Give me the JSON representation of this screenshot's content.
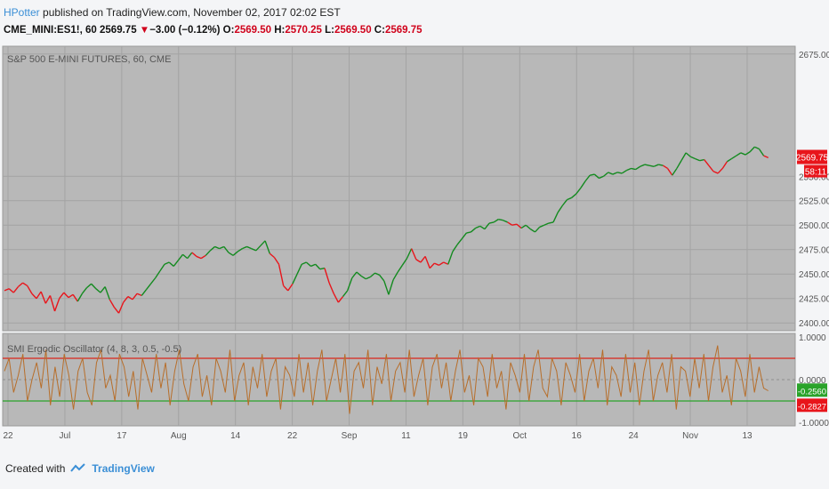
{
  "header": {
    "author": "HPotter",
    "published_text": " published on TradingView.com, November 02, 2017 02:02 EST"
  },
  "symbol_line": {
    "symbol": "CME_MINI:ES1!, 60",
    "last": "2569.75",
    "change_arrow": "▼",
    "change": "−3.00 (−0.12%)",
    "o_label": "O:",
    "o": "2569.50",
    "h_label": "H:",
    "h": "2570.25",
    "l_label": "L:",
    "l": "2569.50",
    "c_label": "C:",
    "c": "2569.75"
  },
  "footer": {
    "created_with": "Created with",
    "brand": "TradingView"
  },
  "colors": {
    "up": "#138a1f",
    "down": "#e8151b",
    "osc_line": "#b76e2a",
    "upper_level": "#d9261c",
    "lower_level": "#2aa32a",
    "pane_bg": "#b8b8b8"
  },
  "chart_data": [
    {
      "type": "line",
      "title": "S&P 500 E-MINI FUTURES, 60, CME",
      "ylim": [
        2392,
        2683
      ],
      "y_ticks": [
        "2675.00",
        "2550.00",
        "2525.00",
        "2500.00",
        "2475.00",
        "2450.00",
        "2425.00",
        "2400.00"
      ],
      "x_ticks": [
        "22",
        "Jul",
        "17",
        "Aug",
        "14",
        "22",
        "Sep",
        "11",
        "19",
        "Oct",
        "16",
        "24",
        "Nov",
        "13"
      ],
      "last_price_label": "2569.75",
      "countdown_label": "58:11",
      "series": [
        {
          "points": [
            [
              0,
              2433,
              "d"
            ],
            [
              2,
              2435,
              "d"
            ],
            [
              4,
              2431,
              "d"
            ],
            [
              6,
              2437,
              "d"
            ],
            [
              8,
              2441,
              "d"
            ],
            [
              10,
              2438,
              "d"
            ],
            [
              12,
              2430,
              "d"
            ],
            [
              14,
              2425,
              "d"
            ],
            [
              16,
              2432,
              "d"
            ],
            [
              18,
              2420,
              "d"
            ],
            [
              20,
              2428,
              "d"
            ],
            [
              22,
              2412,
              "d"
            ],
            [
              24,
              2425,
              "d"
            ],
            [
              26,
              2431,
              "d"
            ],
            [
              28,
              2426,
              "d"
            ],
            [
              30,
              2429,
              "d"
            ],
            [
              32,
              2422,
              "d"
            ],
            [
              34,
              2430,
              "u"
            ],
            [
              36,
              2436,
              "u"
            ],
            [
              38,
              2440,
              "u"
            ],
            [
              40,
              2435,
              "u"
            ],
            [
              42,
              2431,
              "u"
            ],
            [
              44,
              2437,
              "u"
            ],
            [
              46,
              2424,
              "u"
            ],
            [
              48,
              2416,
              "d"
            ],
            [
              50,
              2410,
              "d"
            ],
            [
              52,
              2421,
              "d"
            ],
            [
              54,
              2427,
              "d"
            ],
            [
              56,
              2424,
              "d"
            ],
            [
              58,
              2430,
              "d"
            ],
            [
              60,
              2428,
              "d"
            ],
            [
              62,
              2434,
              "u"
            ],
            [
              64,
              2440,
              "u"
            ],
            [
              66,
              2446,
              "u"
            ],
            [
              68,
              2453,
              "u"
            ],
            [
              70,
              2460,
              "u"
            ],
            [
              72,
              2462,
              "u"
            ],
            [
              74,
              2458,
              "u"
            ],
            [
              76,
              2464,
              "u"
            ],
            [
              78,
              2470,
              "u"
            ],
            [
              80,
              2466,
              "u"
            ],
            [
              82,
              2472,
              "u"
            ],
            [
              84,
              2468,
              "d"
            ],
            [
              86,
              2466,
              "d"
            ],
            [
              88,
              2469,
              "d"
            ],
            [
              90,
              2474,
              "u"
            ],
            [
              92,
              2478,
              "u"
            ],
            [
              94,
              2476,
              "u"
            ],
            [
              96,
              2478,
              "u"
            ],
            [
              98,
              2472,
              "u"
            ],
            [
              100,
              2469,
              "u"
            ],
            [
              102,
              2473,
              "u"
            ],
            [
              104,
              2476,
              "u"
            ],
            [
              106,
              2478,
              "u"
            ],
            [
              108,
              2476,
              "u"
            ],
            [
              110,
              2474,
              "u"
            ],
            [
              112,
              2479,
              "u"
            ],
            [
              114,
              2484,
              "u"
            ],
            [
              116,
              2471,
              "u"
            ],
            [
              118,
              2467,
              "d"
            ],
            [
              120,
              2460,
              "d"
            ],
            [
              122,
              2438,
              "d"
            ],
            [
              124,
              2433,
              "d"
            ],
            [
              126,
              2440,
              "d"
            ],
            [
              128,
              2450,
              "u"
            ],
            [
              130,
              2460,
              "u"
            ],
            [
              132,
              2462,
              "u"
            ],
            [
              134,
              2458,
              "u"
            ],
            [
              136,
              2460,
              "u"
            ],
            [
              138,
              2455,
              "u"
            ],
            [
              140,
              2456,
              "u"
            ],
            [
              142,
              2441,
              "d"
            ],
            [
              144,
              2430,
              "d"
            ],
            [
              146,
              2421,
              "d"
            ],
            [
              148,
              2427,
              "d"
            ],
            [
              150,
              2433,
              "u"
            ],
            [
              152,
              2446,
              "u"
            ],
            [
              154,
              2452,
              "u"
            ],
            [
              156,
              2448,
              "u"
            ],
            [
              158,
              2445,
              "u"
            ],
            [
              160,
              2447,
              "u"
            ],
            [
              162,
              2451,
              "u"
            ],
            [
              164,
              2449,
              "u"
            ],
            [
              166,
              2443,
              "u"
            ],
            [
              168,
              2429,
              "u"
            ],
            [
              170,
              2444,
              "u"
            ],
            [
              172,
              2452,
              "u"
            ],
            [
              174,
              2459,
              "u"
            ],
            [
              176,
              2466,
              "u"
            ],
            [
              178,
              2476,
              "u"
            ],
            [
              180,
              2465,
              "d"
            ],
            [
              182,
              2462,
              "d"
            ],
            [
              184,
              2468,
              "d"
            ],
            [
              186,
              2456,
              "d"
            ],
            [
              188,
              2461,
              "d"
            ],
            [
              190,
              2459,
              "d"
            ],
            [
              192,
              2462,
              "d"
            ],
            [
              194,
              2460,
              "d"
            ],
            [
              196,
              2473,
              "u"
            ],
            [
              198,
              2480,
              "u"
            ],
            [
              200,
              2486,
              "u"
            ],
            [
              202,
              2492,
              "u"
            ],
            [
              204,
              2493,
              "u"
            ],
            [
              206,
              2497,
              "u"
            ],
            [
              208,
              2499,
              "u"
            ],
            [
              210,
              2496,
              "u"
            ],
            [
              212,
              2502,
              "u"
            ],
            [
              214,
              2503,
              "u"
            ],
            [
              216,
              2506,
              "u"
            ],
            [
              218,
              2505,
              "u"
            ],
            [
              220,
              2503,
              "u"
            ],
            [
              222,
              2500,
              "d"
            ],
            [
              224,
              2501,
              "d"
            ],
            [
              226,
              2497,
              "d"
            ],
            [
              228,
              2500,
              "u"
            ],
            [
              230,
              2496,
              "u"
            ],
            [
              232,
              2493,
              "u"
            ],
            [
              234,
              2498,
              "u"
            ],
            [
              236,
              2500,
              "u"
            ],
            [
              238,
              2502,
              "u"
            ],
            [
              240,
              2503,
              "u"
            ],
            [
              242,
              2513,
              "u"
            ],
            [
              244,
              2520,
              "u"
            ],
            [
              246,
              2526,
              "u"
            ],
            [
              248,
              2528,
              "u"
            ],
            [
              250,
              2532,
              "u"
            ],
            [
              252,
              2538,
              "u"
            ],
            [
              254,
              2545,
              "u"
            ],
            [
              256,
              2551,
              "u"
            ],
            [
              258,
              2552,
              "u"
            ],
            [
              260,
              2548,
              "u"
            ],
            [
              262,
              2550,
              "u"
            ],
            [
              264,
              2554,
              "u"
            ],
            [
              266,
              2552,
              "u"
            ],
            [
              268,
              2554,
              "u"
            ],
            [
              270,
              2553,
              "u"
            ],
            [
              272,
              2556,
              "u"
            ],
            [
              274,
              2558,
              "u"
            ],
            [
              276,
              2557,
              "u"
            ],
            [
              278,
              2560,
              "u"
            ],
            [
              280,
              2562,
              "u"
            ],
            [
              282,
              2561,
              "u"
            ],
            [
              284,
              2560,
              "u"
            ],
            [
              286,
              2562,
              "u"
            ],
            [
              288,
              2561,
              "u"
            ],
            [
              290,
              2558,
              "d"
            ],
            [
              292,
              2551,
              "d"
            ],
            [
              294,
              2558,
              "u"
            ],
            [
              296,
              2566,
              "u"
            ],
            [
              298,
              2574,
              "u"
            ],
            [
              300,
              2570,
              "u"
            ],
            [
              302,
              2568,
              "u"
            ],
            [
              304,
              2566,
              "u"
            ],
            [
              306,
              2567,
              "u"
            ],
            [
              308,
              2561,
              "d"
            ],
            [
              310,
              2555,
              "d"
            ],
            [
              312,
              2553,
              "d"
            ],
            [
              314,
              2558,
              "d"
            ],
            [
              316,
              2565,
              "d"
            ],
            [
              318,
              2568,
              "u"
            ],
            [
              320,
              2571,
              "u"
            ],
            [
              322,
              2574,
              "u"
            ],
            [
              324,
              2572,
              "u"
            ],
            [
              326,
              2575,
              "u"
            ],
            [
              328,
              2580,
              "u"
            ],
            [
              330,
              2578,
              "u"
            ],
            [
              332,
              2571,
              "u"
            ],
            [
              334,
              2569,
              "d"
            ]
          ]
        }
      ]
    },
    {
      "type": "line",
      "title": "SMI Ergodic Oscillator (4, 8, 3, 0.5, -0.5)",
      "ylim": [
        -1,
        1
      ],
      "y_ticks": [
        "1.0000",
        "0.0000",
        "-1.0000"
      ],
      "levels": [
        0.5,
        -0.5
      ],
      "last_value_labels": [
        "-0.2560",
        "-0.2827"
      ],
      "series": [
        {
          "values": [
            0.2,
            0.5,
            -0.3,
            0.1,
            0.6,
            -0.5,
            0.0,
            0.4,
            -0.2,
            0.7,
            -0.6,
            0.3,
            -0.4,
            0.6,
            0.1,
            -0.7,
            0.2,
            0.5,
            -0.3,
            -0.6,
            0.4,
            0.7,
            -0.2,
            0.1,
            -0.5,
            0.6,
            0.3,
            -0.4,
            0.2,
            -0.7,
            0.5,
            0.1,
            -0.3,
            0.6,
            -0.2,
            0.4,
            -0.6,
            0.2,
            0.7,
            -0.1,
            -0.5,
            0.3,
            0.6,
            -0.4,
            0.1,
            -0.6,
            0.5,
            0.2,
            -0.3,
            0.7,
            -0.5,
            0.1,
            0.4,
            -0.6,
            0.3,
            -0.2,
            0.6,
            -0.4,
            0.2,
            0.5,
            -0.7,
            0.3,
            0.1,
            -0.4,
            0.6,
            -0.3,
            0.4,
            -0.6,
            0.2,
            0.7,
            -0.5,
            0.0,
            0.5,
            -0.3,
            0.6,
            -0.8,
            0.2,
            0.4,
            -0.2,
            0.7,
            -0.6,
            0.3,
            -0.1,
            0.6,
            -0.5,
            0.2,
            0.4,
            -0.3,
            0.7,
            -0.4,
            0.1,
            0.5,
            -0.6,
            0.3,
            0.6,
            -0.2,
            0.4,
            -0.5,
            0.2,
            0.7,
            -0.3,
            0.1,
            -0.6,
            0.5,
            0.3,
            -0.4,
            0.6,
            -0.2,
            0.2,
            -0.7,
            0.4,
            0.1,
            -0.3,
            0.6,
            -0.5,
            0.3,
            0.7,
            -0.2,
            -0.4,
            0.5,
            0.2,
            -0.6,
            0.4,
            0.1,
            -0.3,
            0.6,
            -0.5,
            0.2,
            0.5,
            -0.2,
            0.7,
            -0.6,
            0.3,
            0.1,
            -0.4,
            0.6,
            -0.3,
            0.4,
            -0.6,
            0.2,
            0.7,
            -0.5,
            0.1,
            0.4,
            -0.3,
            0.6,
            -0.7,
            0.3,
            0.2,
            -0.4,
            0.5,
            -0.2,
            0.6,
            -0.5,
            0.3,
            0.8,
            -0.3,
            0.1,
            -0.6,
            0.5,
            0.2,
            -0.4,
            0.6,
            -0.3,
            0.3,
            -0.2,
            -0.26
          ]
        }
      ]
    }
  ]
}
